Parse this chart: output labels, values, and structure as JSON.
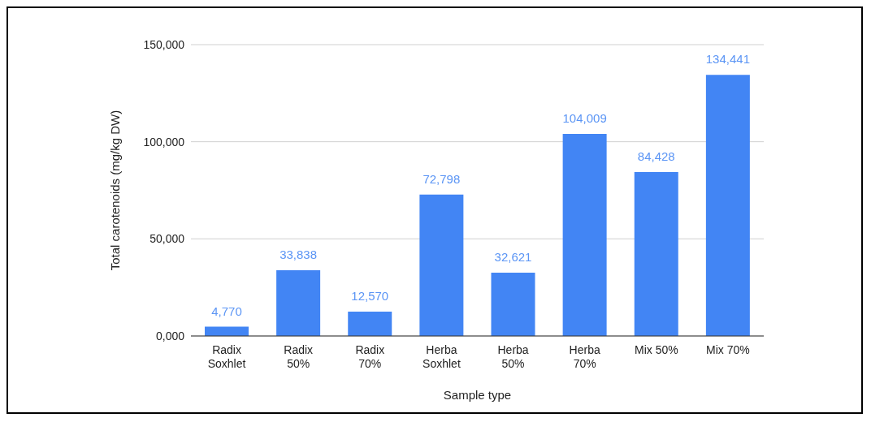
{
  "chart_data": {
    "type": "bar",
    "xlabel": "Sample type",
    "ylabel": "Total carotenoids (mg/kg DW)",
    "categories": [
      "Radix Soxhlet",
      "Radix 50%",
      "Radix 70%",
      "Herba Soxhlet",
      "Herba 50%",
      "Herba 70%",
      "Mix 50%",
      "Mix 70%"
    ],
    "values": [
      4770,
      33838,
      12570,
      72798,
      32621,
      104009,
      84428,
      134441
    ],
    "value_labels": [
      "4,770",
      "33,838",
      "12,570",
      "72,798",
      "32,621",
      "104,009",
      "84,428",
      "134,441"
    ],
    "color": "#4285f4",
    "ylim": [
      0,
      150000
    ],
    "yticks": [
      {
        "value": 0,
        "label": "0,000"
      },
      {
        "value": 50000,
        "label": "50,000"
      },
      {
        "value": 100000,
        "label": "100,000"
      },
      {
        "value": 150000,
        "label": "150,000"
      }
    ],
    "grid": "y",
    "legend": false
  }
}
